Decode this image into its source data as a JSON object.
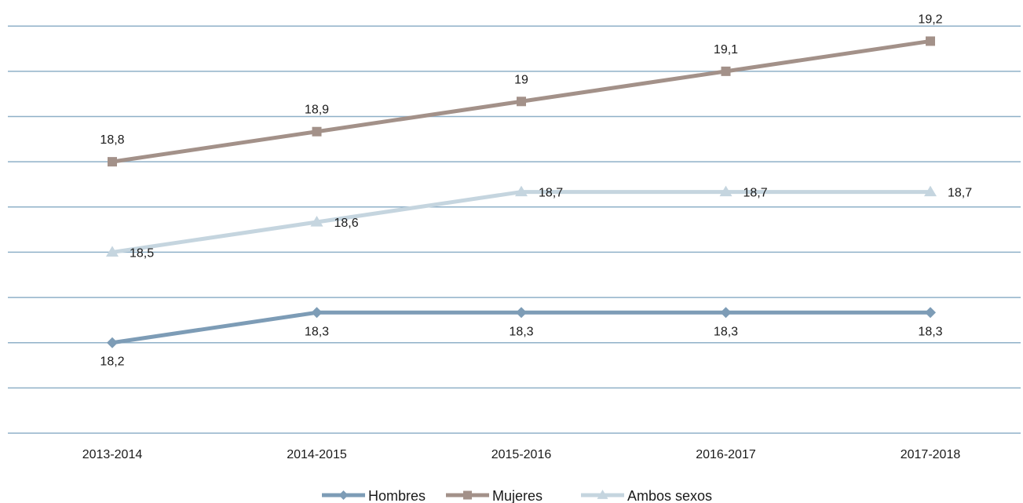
{
  "chart_data": {
    "type": "line",
    "title": "",
    "xlabel": "",
    "ylabel": "",
    "categories": [
      "2013-2014",
      "2014-2015",
      "2015-2016",
      "2016-2017",
      "2017-2018"
    ],
    "ylim": [
      17.9,
      19.3
    ],
    "grid": true,
    "legend_position": "bottom",
    "series": [
      {
        "name": "Hombres",
        "values": [
          18.2,
          18.3,
          18.3,
          18.3,
          18.3
        ],
        "labels": [
          "18,2",
          "18,3",
          "18,3",
          "18,3",
          "18,3"
        ],
        "color": "#7d9cb6",
        "marker": "diamond",
        "label_position": "below"
      },
      {
        "name": "Mujeres",
        "values": [
          18.8,
          18.9,
          19.0,
          19.1,
          19.2
        ],
        "labels": [
          "18,8",
          "18,9",
          "19",
          "19,1",
          "19,2"
        ],
        "color": "#a39189",
        "marker": "square",
        "label_position": "above"
      },
      {
        "name": "Ambos sexos",
        "values": [
          18.5,
          18.6,
          18.7,
          18.7,
          18.7
        ],
        "labels": [
          "18,5",
          "18,6",
          "18,7",
          "18,7",
          "18,7"
        ],
        "color": "#c5d5df",
        "marker": "triangle",
        "label_position": "right"
      }
    ]
  }
}
